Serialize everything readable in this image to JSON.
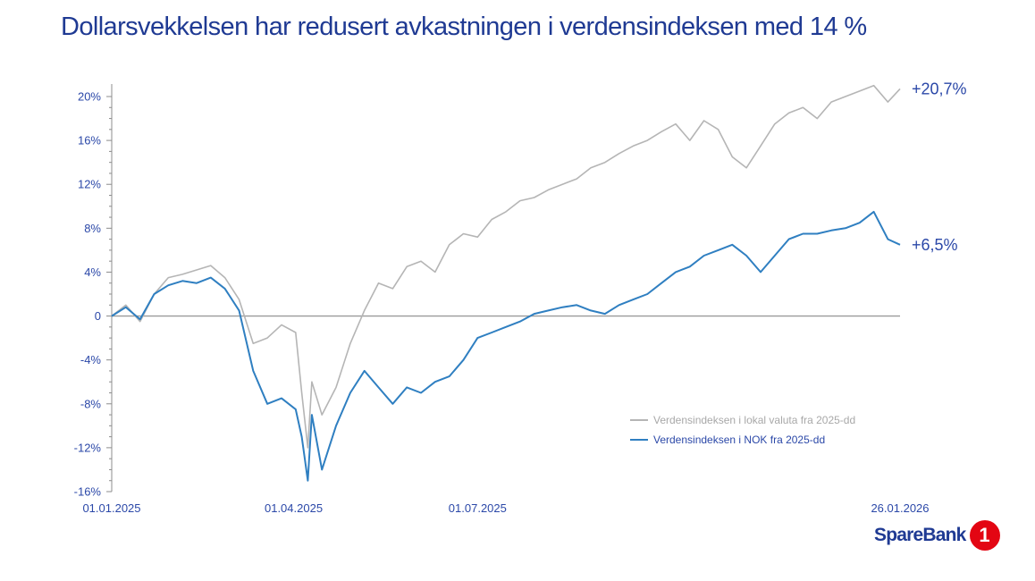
{
  "colors": {
    "title": "#1f3a93",
    "axis_text": "#2b48a8",
    "local_series": "#b5b5b5",
    "nok_series": "#2f7fc1",
    "zero_line": "#9a9a9a",
    "brand_red": "#e30613"
  },
  "brand": {
    "name": "SpareBank",
    "badge": "1"
  },
  "chart_data": {
    "type": "line",
    "title": "Dollarsvekkelsen har redusert avkastningen i verdensindeksen med 14 %",
    "xlabel": "",
    "ylabel": "",
    "x_ticks": [
      "01.01.2025",
      "01.04.2025",
      "01.07.2025",
      "26.01.2026"
    ],
    "xlim": [
      "2025-01-01",
      "2026-01-26"
    ],
    "ylim": [
      -16,
      20
    ],
    "y_ticks": [
      -16,
      -12,
      -8,
      -4,
      0,
      4,
      8,
      12,
      16,
      20
    ],
    "y_tick_labels": [
      "-16%",
      "-12%",
      "-8%",
      "-4%",
      "0",
      "4%",
      "8%",
      "12%",
      "16%",
      "20%"
    ],
    "grid": false,
    "legend": "inside-bottom-right",
    "series": [
      {
        "name": "Verdensindeksen i lokal valuta fra 2025-dd",
        "end_label": "+20,7%",
        "x": [
          "2025-01-01",
          "2025-01-08",
          "2025-01-15",
          "2025-01-22",
          "2025-01-29",
          "2025-02-05",
          "2025-02-12",
          "2025-02-19",
          "2025-02-26",
          "2025-03-05",
          "2025-03-12",
          "2025-03-19",
          "2025-03-26",
          "2025-04-02",
          "2025-04-05",
          "2025-04-08",
          "2025-04-10",
          "2025-04-15",
          "2025-04-22",
          "2025-04-29",
          "2025-05-06",
          "2025-05-13",
          "2025-05-20",
          "2025-05-27",
          "2025-06-03",
          "2025-06-10",
          "2025-06-17",
          "2025-06-24",
          "2025-07-01",
          "2025-07-08",
          "2025-07-15",
          "2025-07-22",
          "2025-07-29",
          "2025-08-05",
          "2025-08-12",
          "2025-08-19",
          "2025-08-26",
          "2025-09-02",
          "2025-09-09",
          "2025-09-16",
          "2025-09-23",
          "2025-09-30",
          "2025-10-07",
          "2025-10-14",
          "2025-10-21",
          "2025-10-28",
          "2025-11-04",
          "2025-11-11",
          "2025-11-18",
          "2025-11-25",
          "2025-12-02",
          "2025-12-09",
          "2025-12-16",
          "2025-12-23",
          "2025-12-30",
          "2026-01-06",
          "2026-01-13",
          "2026-01-20",
          "2026-01-26"
        ],
        "values": [
          0.0,
          1.0,
          -0.5,
          2.0,
          3.5,
          3.8,
          4.2,
          4.6,
          3.5,
          1.5,
          -2.5,
          -2.0,
          -0.8,
          -1.5,
          -7.0,
          -12.0,
          -6.0,
          -9.0,
          -6.5,
          -2.5,
          0.5,
          3.0,
          2.5,
          4.5,
          5.0,
          4.0,
          6.5,
          7.5,
          7.2,
          8.8,
          9.5,
          10.5,
          10.8,
          11.5,
          12.0,
          12.5,
          13.5,
          14.0,
          14.8,
          15.5,
          16.0,
          16.8,
          17.5,
          16.0,
          17.8,
          17.0,
          14.5,
          13.5,
          15.5,
          17.5,
          18.5,
          19.0,
          18.0,
          19.5,
          20.0,
          20.5,
          21.0,
          19.5,
          20.7
        ]
      },
      {
        "name": "Verdensindeksen i NOK fra 2025-dd",
        "end_label": "+6,5%",
        "x": [
          "2025-01-01",
          "2025-01-08",
          "2025-01-15",
          "2025-01-22",
          "2025-01-29",
          "2025-02-05",
          "2025-02-12",
          "2025-02-19",
          "2025-02-26",
          "2025-03-05",
          "2025-03-12",
          "2025-03-19",
          "2025-03-26",
          "2025-04-02",
          "2025-04-05",
          "2025-04-08",
          "2025-04-10",
          "2025-04-15",
          "2025-04-22",
          "2025-04-29",
          "2025-05-06",
          "2025-05-13",
          "2025-05-20",
          "2025-05-27",
          "2025-06-03",
          "2025-06-10",
          "2025-06-17",
          "2025-06-24",
          "2025-07-01",
          "2025-07-08",
          "2025-07-15",
          "2025-07-22",
          "2025-07-29",
          "2025-08-05",
          "2025-08-12",
          "2025-08-19",
          "2025-08-26",
          "2025-09-02",
          "2025-09-09",
          "2025-09-16",
          "2025-09-23",
          "2025-09-30",
          "2025-10-07",
          "2025-10-14",
          "2025-10-21",
          "2025-10-28",
          "2025-11-04",
          "2025-11-11",
          "2025-11-18",
          "2025-11-25",
          "2025-12-02",
          "2025-12-09",
          "2025-12-16",
          "2025-12-23",
          "2025-12-30",
          "2026-01-06",
          "2026-01-13",
          "2026-01-20",
          "2026-01-26"
        ],
        "values": [
          0.0,
          0.8,
          -0.3,
          2.0,
          2.8,
          3.2,
          3.0,
          3.5,
          2.5,
          0.5,
          -5.0,
          -8.0,
          -7.5,
          -8.5,
          -11.0,
          -15.0,
          -9.0,
          -14.0,
          -10.0,
          -7.0,
          -5.0,
          -6.5,
          -8.0,
          -6.5,
          -7.0,
          -6.0,
          -5.5,
          -4.0,
          -2.0,
          -1.5,
          -1.0,
          -0.5,
          0.2,
          0.5,
          0.8,
          1.0,
          0.5,
          0.2,
          1.0,
          1.5,
          2.0,
          3.0,
          4.0,
          4.5,
          5.5,
          6.0,
          6.5,
          5.5,
          4.0,
          5.5,
          7.0,
          7.5,
          7.5,
          7.8,
          8.0,
          8.5,
          9.5,
          7.0,
          6.5
        ]
      }
    ]
  }
}
